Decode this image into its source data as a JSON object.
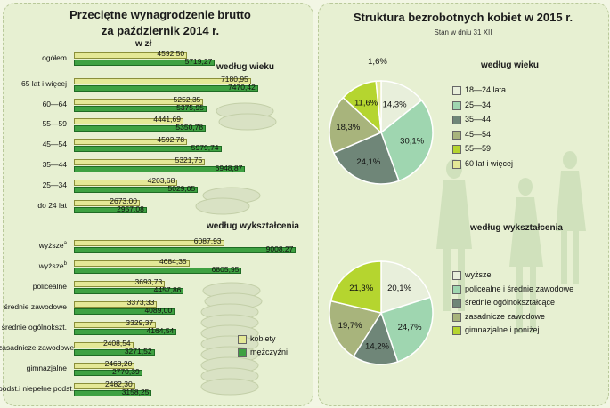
{
  "left": {
    "title_line1": "Przeciętne wynagrodzenie brutto",
    "title_line2": "za październik 2014 r.",
    "unit": "w zł",
    "section_age": "według wieku",
    "section_edu": "według wykształcenia",
    "legend": {
      "women": "kobiety",
      "men": "mężczyźni"
    }
  },
  "right": {
    "title": "Struktura bezrobotnych kobiet w 2015 r.",
    "subtitle": "Stan w dniu 31 XII",
    "section_age": "według wieku",
    "section_edu": "według wykształcenia"
  },
  "colors": {
    "women": "#e4e896",
    "men": "#3fa142",
    "pie_age": [
      "#e8efdb",
      "#9fd6b0",
      "#6f8678",
      "#a8b47c",
      "#b5d52f",
      "#e4e896"
    ],
    "pie_edu": [
      "#e8efdb",
      "#9fd6b0",
      "#6f8678",
      "#a8b47c",
      "#b5d52f"
    ]
  },
  "chart_data": [
    {
      "type": "bar",
      "title": "Przeciętne wynagrodzenie brutto za październik 2014 r.",
      "ylabel": "w zł",
      "xlim": [
        0,
        9500
      ],
      "series": [
        {
          "name": "kobiety",
          "values": [
            4592.5,
            7180.95,
            5252.35,
            4441.69,
            4592.78,
            5321.75,
            4203.68,
            2673.0,
            6087.93,
            4684.35,
            3693.73,
            3373.33,
            3329.37,
            2408.54,
            2468.2,
            2482.3
          ]
        },
        {
          "name": "mężczyźni",
          "values": [
            5719.27,
            7470.42,
            5375.95,
            5350.78,
            5979.74,
            6948.87,
            5029.05,
            2957.08,
            9008.27,
            6805.95,
            4457.86,
            4089.0,
            4164.54,
            3271.52,
            2770.39,
            3158.25
          ]
        }
      ],
      "categories": [
        "ogółem",
        "65 lat i więcej",
        "60—64",
        "55—59",
        "45—54",
        "35—44",
        "25—34",
        "do 24 lat",
        "wyższe",
        "wyższe",
        "policealne",
        "średnie zawodowe",
        "średnie ogólnokszt.",
        "zasadnicze zawodowe",
        "gimnazjalne",
        "podst.i niepełne podst."
      ],
      "value_labels": {
        "women": [
          "4592,50",
          "7180,95",
          "5252,35",
          "4441,69",
          "4592,78",
          "5321,75",
          "4203,68",
          "2673,00",
          "6087,93",
          "4684,35",
          "3693,73",
          "3373,33",
          "3329,37",
          "2408,54",
          "2468,20",
          "2482,30"
        ],
        "men": [
          "5719,27",
          "7470,42",
          "5375,95",
          "5350,78",
          "5979,74",
          "6948,87",
          "5029,05",
          "2957,08",
          "9008,27",
          "6805,95",
          "4457,86",
          "4089,00",
          "4164,54",
          "3271,52",
          "2770,39",
          "3158,25"
        ]
      },
      "footnote_marks": [
        "",
        "",
        "",
        "",
        "",
        "",
        "",
        "",
        "a",
        "b",
        "",
        "",
        "",
        "",
        "",
        ""
      ]
    },
    {
      "type": "pie",
      "title": "według wieku",
      "categories": [
        "18—24 lata",
        "25—34",
        "35—44",
        "45—54",
        "55—59",
        "60 lat i więcej"
      ],
      "values": [
        14.3,
        30.1,
        24.1,
        18.3,
        11.6,
        1.6
      ],
      "value_labels": [
        "14,3%",
        "30,1%",
        "24,1%",
        "18,3%",
        "11,6%",
        "1,6%"
      ]
    },
    {
      "type": "pie",
      "title": "według wykształcenia",
      "categories": [
        "wyższe",
        "policealne i średnie zawodowe",
        "średnie ogólnokształcące",
        "zasadnicze zawodowe",
        "gimnazjalne i poniżej"
      ],
      "values": [
        20.1,
        24.7,
        14.2,
        19.7,
        21.3
      ],
      "value_labels": [
        "20,1%",
        "24,7%",
        "14,2%",
        "19,7%",
        "21,3%"
      ]
    }
  ]
}
